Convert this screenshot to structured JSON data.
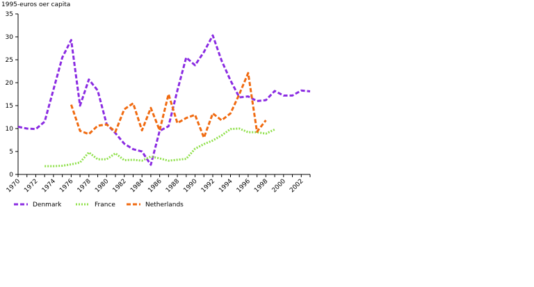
{
  "chart_data": {
    "type": "line",
    "title": "",
    "ylabel": "1995-euros oer capita",
    "xlabel": "",
    "ylim": [
      0,
      35
    ],
    "yticks": [
      0,
      5,
      10,
      15,
      20,
      25,
      30,
      35
    ],
    "xlim": [
      1970,
      2003
    ],
    "xticks": [
      1970,
      1972,
      1974,
      1976,
      1978,
      1980,
      1982,
      1984,
      1986,
      1988,
      1990,
      1992,
      1994,
      1996,
      1998,
      2000,
      2002
    ],
    "grid": false,
    "legend_position": "bottom-left",
    "series": [
      {
        "name": "Denmark",
        "color": "#8a2be2",
        "dash": "dashed",
        "x": [
          1970,
          1971,
          1972,
          1973,
          1974,
          1975,
          1976,
          1977,
          1978,
          1979,
          1980,
          1981,
          1982,
          1983,
          1984,
          1985,
          1986,
          1987,
          1988,
          1989,
          1990,
          1991,
          1992,
          1993,
          1994,
          1995,
          1996,
          1997,
          1998,
          1999,
          2000,
          2001,
          2002,
          2003
        ],
        "values": [
          10.4,
          10.0,
          9.9,
          11.5,
          18.5,
          25.5,
          29.3,
          15.0,
          20.7,
          18.3,
          11.0,
          9.0,
          6.7,
          5.5,
          5.0,
          2.1,
          9.5,
          10.5,
          18.3,
          25.5,
          23.8,
          26.7,
          30.3,
          24.8,
          20.5,
          16.8,
          17.0,
          16.0,
          16.2,
          18.2,
          17.2,
          17.2,
          18.3,
          18.1
        ]
      },
      {
        "name": "France",
        "color": "#8fe04a",
        "dash": "dotted",
        "x": [
          1973,
          1974,
          1975,
          1976,
          1977,
          1978,
          1979,
          1980,
          1981,
          1982,
          1983,
          1984,
          1985,
          1986,
          1987,
          1988,
          1989,
          1990,
          1991,
          1992,
          1993,
          1994,
          1995,
          1996,
          1997,
          1998,
          1999
        ],
        "values": [
          1.8,
          1.8,
          1.9,
          2.2,
          2.6,
          4.8,
          3.3,
          3.3,
          4.6,
          3.1,
          3.2,
          3.0,
          3.9,
          3.5,
          3.0,
          3.2,
          3.4,
          5.6,
          6.6,
          7.4,
          8.5,
          9.9,
          10.0,
          9.2,
          9.2,
          8.9,
          9.8
        ]
      },
      {
        "name": "Netherlands",
        "color": "#f06a10",
        "dash": "dashed",
        "x": [
          1976,
          1977,
          1978,
          1979,
          1980,
          1981,
          1982,
          1983,
          1984,
          1985,
          1986,
          1987,
          1988,
          1989,
          1990,
          1991,
          1992,
          1993,
          1994,
          1995,
          1996,
          1997,
          1998
        ],
        "values": [
          15.2,
          9.5,
          8.8,
          10.6,
          10.9,
          9.3,
          14.2,
          15.5,
          9.6,
          14.5,
          9.6,
          17.5,
          11.2,
          12.3,
          13.0,
          8.0,
          13.3,
          11.8,
          13.3,
          17.5,
          22.1,
          9.3,
          11.8
        ]
      }
    ]
  }
}
